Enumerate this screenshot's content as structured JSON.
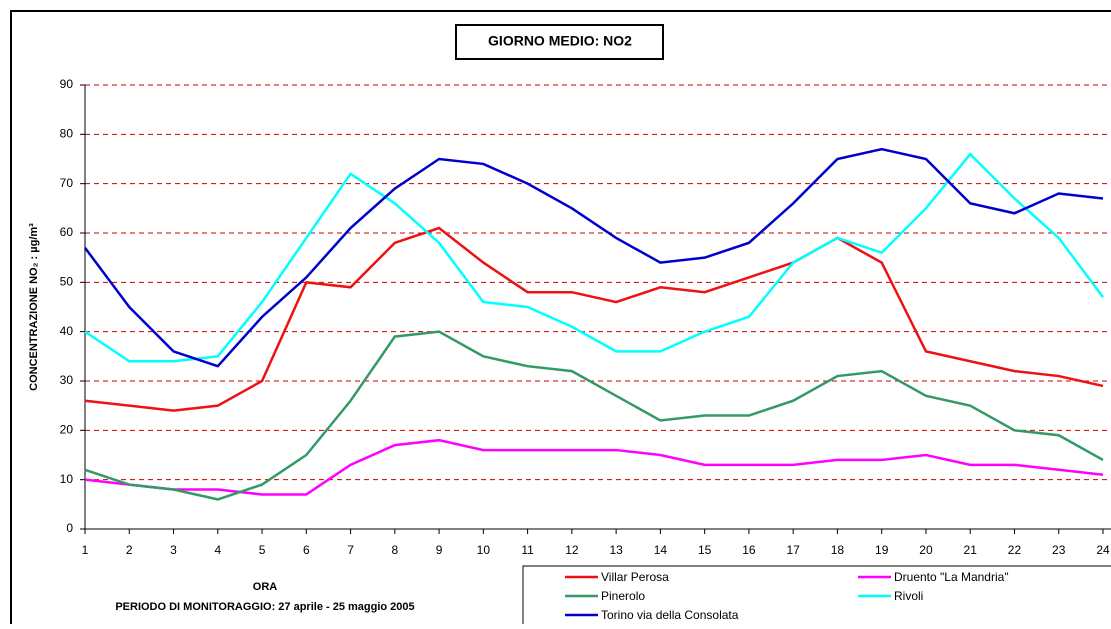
{
  "chart_data": {
    "type": "line",
    "title": "GIORNO MEDIO: NO2",
    "x_label": "ORA",
    "subtitle": "PERIODO DI MONITORAGGIO: 27 aprile - 25 maggio 2005",
    "y_label": "CONCENTRAZIONE NO₂ : µg/m³",
    "x": [
      1,
      2,
      3,
      4,
      5,
      6,
      7,
      8,
      9,
      10,
      11,
      12,
      13,
      14,
      15,
      16,
      17,
      18,
      19,
      20,
      21,
      22,
      23,
      24
    ],
    "xlim": [
      1,
      24
    ],
    "xticks": [
      1,
      2,
      3,
      4,
      5,
      6,
      7,
      8,
      9,
      10,
      11,
      12,
      13,
      14,
      15,
      16,
      17,
      18,
      19,
      20,
      21,
      22,
      23,
      24
    ],
    "ylim": [
      0,
      90
    ],
    "yticks": [
      0,
      10,
      20,
      30,
      40,
      50,
      60,
      70,
      80,
      90
    ],
    "grid": true,
    "series": [
      {
        "name": "Villar Perosa",
        "color": "#ee1111",
        "values": [
          26,
          25,
          24,
          25,
          30,
          50,
          49,
          58,
          61,
          54,
          48,
          48,
          46,
          49,
          48,
          51,
          54,
          59,
          54,
          36,
          34,
          32,
          31,
          29
        ]
      },
      {
        "name": "Druento \"La Mandria\"",
        "color": "#ff00ff",
        "values": [
          10,
          9,
          8,
          8,
          7,
          7,
          13,
          17,
          18,
          16,
          16,
          16,
          16,
          15,
          13,
          13,
          13,
          14,
          14,
          15,
          13,
          13,
          12,
          11
        ]
      },
      {
        "name": "Pinerolo",
        "color": "#339966",
        "values": [
          12,
          9,
          8,
          6,
          9,
          15,
          26,
          39,
          40,
          35,
          33,
          32,
          27,
          22,
          23,
          23,
          26,
          31,
          32,
          27,
          25,
          20,
          19,
          14
        ]
      },
      {
        "name": "Rivoli",
        "color": "#00ffff",
        "values": [
          40,
          34,
          34,
          35,
          46,
          59,
          72,
          66,
          58,
          46,
          45,
          41,
          36,
          36,
          40,
          43,
          54,
          59,
          56,
          65,
          76,
          67,
          59,
          47
        ]
      },
      {
        "name": "Torino via della Consolata",
        "color": "#0000cc",
        "values": [
          57,
          45,
          36,
          33,
          43,
          51,
          61,
          69,
          75,
          74,
          70,
          65,
          59,
          54,
          55,
          58,
          66,
          75,
          77,
          75,
          66,
          64,
          68,
          67
        ]
      }
    ]
  }
}
